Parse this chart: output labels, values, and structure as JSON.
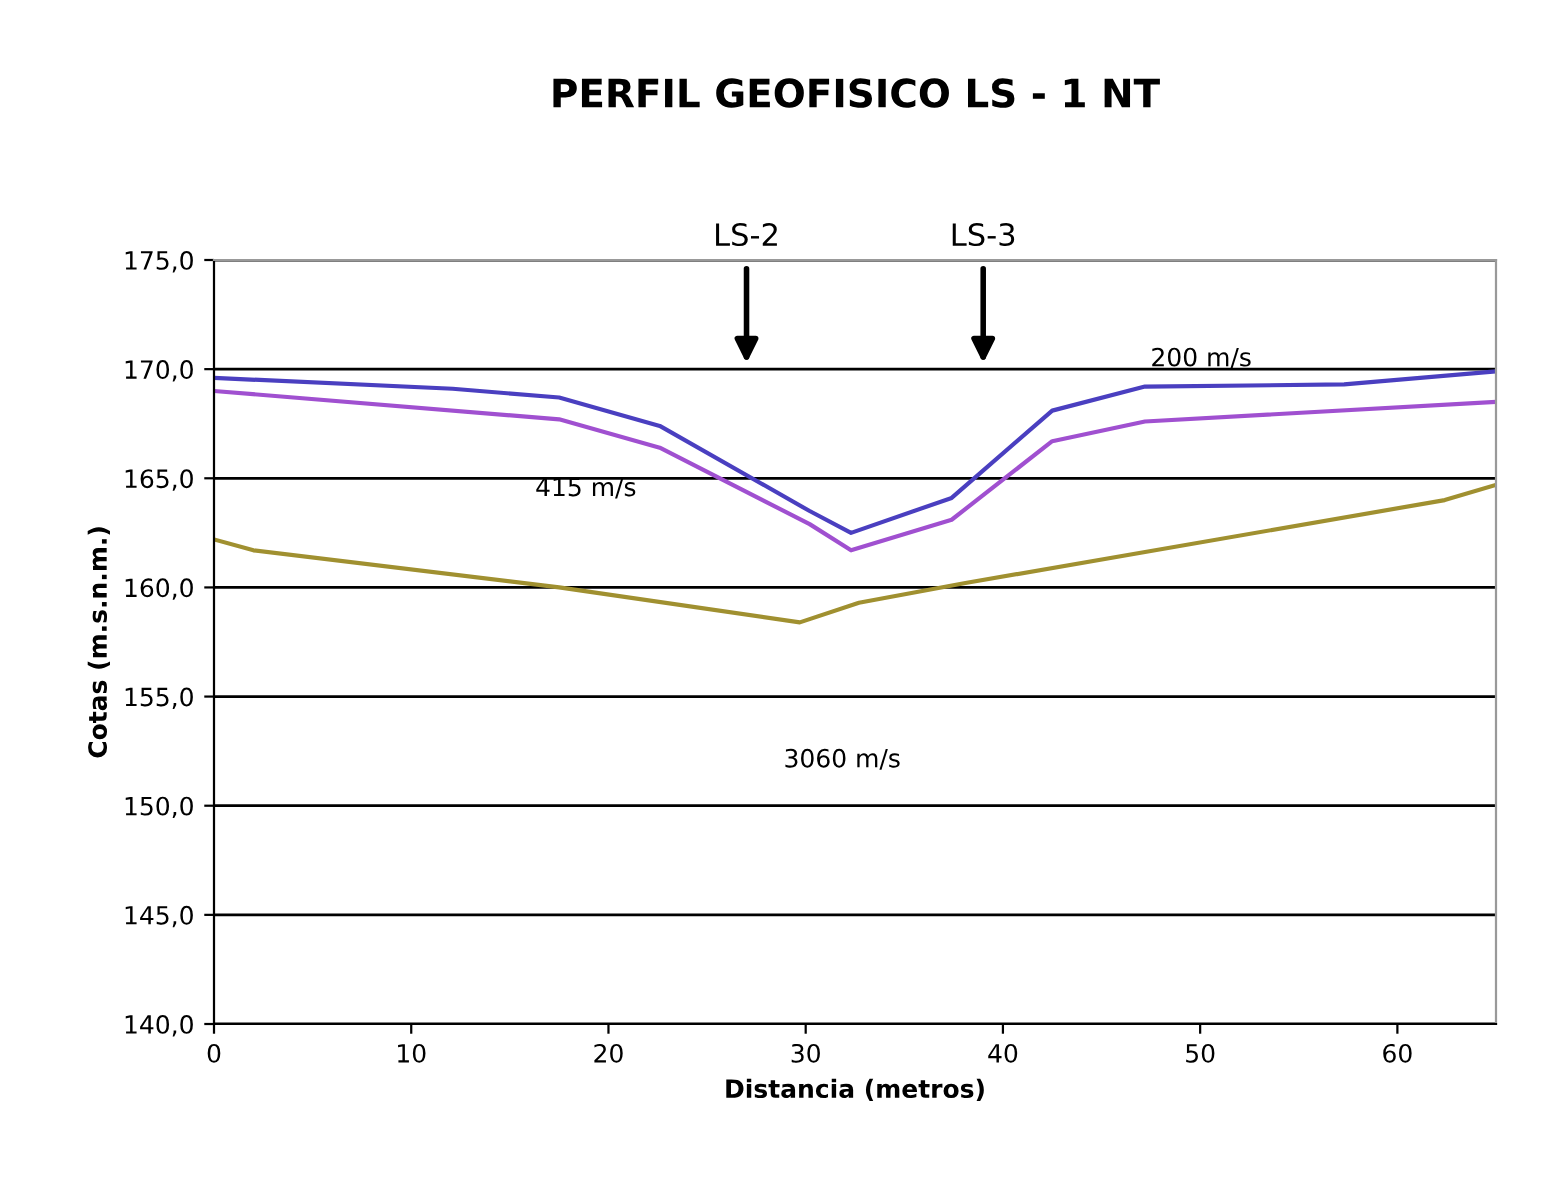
{
  "chart_data": {
    "type": "line",
    "title": "PERFIL GEOFISICO LS - 1 NT",
    "xlabel": "Distancia (metros)",
    "ylabel": "Cotas (m.s.n.m.)",
    "xlim": [
      0,
      65
    ],
    "xticks": [
      0,
      10,
      20,
      30,
      40,
      50,
      60
    ],
    "ylim": [
      140,
      175
    ],
    "yticks": [
      {
        "value": 140,
        "label": "140,0"
      },
      {
        "value": 145,
        "label": "145,0"
      },
      {
        "value": 150,
        "label": "150,0"
      },
      {
        "value": 155,
        "label": "155,0"
      },
      {
        "value": 160,
        "label": "160,0"
      },
      {
        "value": 165,
        "label": "165,0"
      },
      {
        "value": 170,
        "label": "170,0"
      },
      {
        "value": 175,
        "label": "175,0"
      }
    ],
    "grid": "y",
    "marker": "none",
    "line_style": "solid",
    "series": [
      {
        "color": "#4a3fc0",
        "x": [
          0,
          12.1,
          17.5,
          22.6,
          30.2,
          32.3,
          37.4,
          42.5,
          47.2,
          57.3,
          65
        ],
        "values": [
          169.6,
          169.1,
          168.7,
          167.4,
          163.5,
          162.5,
          164.1,
          168.1,
          169.2,
          169.3,
          169.9
        ]
      },
      {
        "color": "#a050d0",
        "x": [
          0,
          17.5,
          22.6,
          30.2,
          32.3,
          37.4,
          42.5,
          47.2,
          65
        ],
        "values": [
          169.0,
          167.7,
          166.4,
          162.9,
          161.7,
          163.1,
          166.7,
          167.6,
          168.5
        ]
      },
      {
        "color": "#a09030",
        "x": [
          0,
          2,
          17.5,
          29.7,
          32.7,
          38.1,
          62.4,
          65
        ],
        "values": [
          162.2,
          161.7,
          160.0,
          158.4,
          159.3,
          160.2,
          164.0,
          164.7
        ]
      }
    ],
    "annotations": [
      "LS-2",
      "LS-3",
      "200 m/s",
      "415 m/s",
      "3060 m/s"
    ]
  }
}
